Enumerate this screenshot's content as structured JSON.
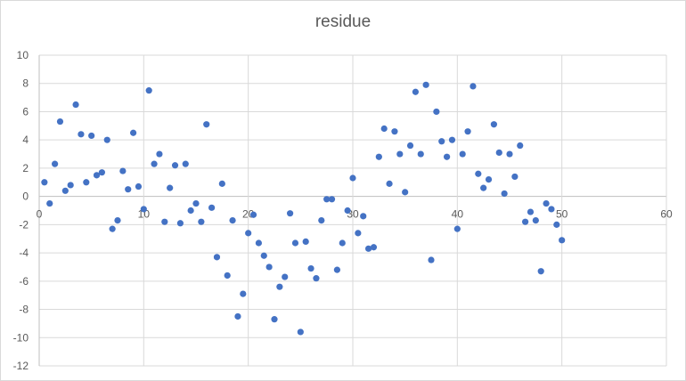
{
  "chart_data": {
    "type": "scatter",
    "title": "residue",
    "xlabel": "",
    "ylabel": "",
    "xlim": [
      0,
      60
    ],
    "ylim": [
      -12,
      10
    ],
    "xticks": [
      0,
      10,
      20,
      30,
      40,
      50,
      60
    ],
    "yticks": [
      -12,
      -10,
      -8,
      -6,
      -4,
      -2,
      0,
      2,
      4,
      6,
      8,
      10
    ],
    "grid": true,
    "legend": "none",
    "marker_color": "#4472c4",
    "series": [
      {
        "points": [
          [
            0.5,
            1.0
          ],
          [
            1.0,
            -0.5
          ],
          [
            1.5,
            2.3
          ],
          [
            2.0,
            5.3
          ],
          [
            2.5,
            0.4
          ],
          [
            3.0,
            0.8
          ],
          [
            3.5,
            6.5
          ],
          [
            4.0,
            4.4
          ],
          [
            4.5,
            1.0
          ],
          [
            5.0,
            4.3
          ],
          [
            5.5,
            1.5
          ],
          [
            6.0,
            1.7
          ],
          [
            6.5,
            4.0
          ],
          [
            7.0,
            -2.3
          ],
          [
            7.5,
            -1.7
          ],
          [
            8.0,
            1.8
          ],
          [
            8.5,
            0.5
          ],
          [
            9.0,
            4.5
          ],
          [
            9.5,
            0.7
          ],
          [
            10.0,
            -0.9
          ],
          [
            10.5,
            7.5
          ],
          [
            11.0,
            2.3
          ],
          [
            11.5,
            3.0
          ],
          [
            12.0,
            -1.8
          ],
          [
            12.5,
            0.6
          ],
          [
            13.0,
            2.2
          ],
          [
            13.5,
            -1.9
          ],
          [
            14.0,
            2.3
          ],
          [
            14.5,
            -1.0
          ],
          [
            15.0,
            -0.5
          ],
          [
            15.5,
            -1.8
          ],
          [
            16.0,
            5.1
          ],
          [
            16.5,
            -0.8
          ],
          [
            17.0,
            -4.3
          ],
          [
            17.5,
            0.9
          ],
          [
            18.0,
            -5.6
          ],
          [
            18.5,
            -1.7
          ],
          [
            19.0,
            -8.5
          ],
          [
            19.5,
            -6.9
          ],
          [
            20.0,
            -2.6
          ],
          [
            20.5,
            -1.3
          ],
          [
            21.0,
            -3.3
          ],
          [
            21.5,
            -4.2
          ],
          [
            22.0,
            -5.0
          ],
          [
            22.5,
            -8.7
          ],
          [
            23.0,
            -6.4
          ],
          [
            23.5,
            -5.7
          ],
          [
            24.0,
            -1.2
          ],
          [
            24.5,
            -3.3
          ],
          [
            25.0,
            -9.6
          ],
          [
            25.5,
            -3.2
          ],
          [
            26.0,
            -5.1
          ],
          [
            26.5,
            -5.8
          ],
          [
            27.0,
            -1.7
          ],
          [
            27.5,
            -0.2
          ],
          [
            28.0,
            -0.2
          ],
          [
            28.5,
            -5.2
          ],
          [
            29.0,
            -3.3
          ],
          [
            29.5,
            -1.0
          ],
          [
            30.0,
            1.3
          ],
          [
            30.5,
            -2.6
          ],
          [
            31.0,
            -1.4
          ],
          [
            31.5,
            -3.7
          ],
          [
            32.0,
            -3.6
          ],
          [
            32.5,
            2.8
          ],
          [
            33.0,
            4.8
          ],
          [
            33.5,
            0.9
          ],
          [
            34.0,
            4.6
          ],
          [
            34.5,
            3.0
          ],
          [
            35.0,
            0.3
          ],
          [
            35.5,
            3.6
          ],
          [
            36.0,
            7.4
          ],
          [
            36.5,
            3.0
          ],
          [
            37.0,
            7.9
          ],
          [
            37.5,
            -4.5
          ],
          [
            38.0,
            6.0
          ],
          [
            38.5,
            3.9
          ],
          [
            39.0,
            2.8
          ],
          [
            39.5,
            4.0
          ],
          [
            40.0,
            -2.3
          ],
          [
            40.5,
            3.0
          ],
          [
            41.0,
            4.6
          ],
          [
            41.5,
            7.8
          ],
          [
            42.0,
            1.6
          ],
          [
            42.5,
            0.6
          ],
          [
            43.0,
            1.2
          ],
          [
            43.5,
            5.1
          ],
          [
            44.0,
            3.1
          ],
          [
            44.5,
            0.2
          ],
          [
            45.0,
            3.0
          ],
          [
            45.5,
            1.4
          ],
          [
            46.0,
            3.6
          ],
          [
            46.5,
            -1.8
          ],
          [
            47.0,
            -1.1
          ],
          [
            47.5,
            -1.7
          ],
          [
            48.0,
            -5.3
          ],
          [
            48.5,
            -0.5
          ],
          [
            49.0,
            -0.9
          ],
          [
            49.5,
            -2.0
          ],
          [
            50.0,
            -3.1
          ]
        ]
      }
    ]
  }
}
